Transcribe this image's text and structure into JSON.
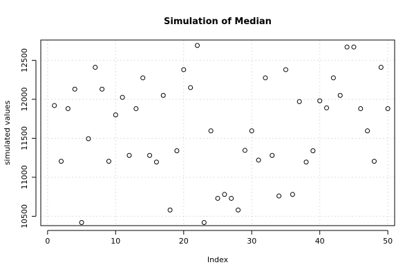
{
  "chart_data": {
    "type": "scatter",
    "title": "Simulation of Median",
    "xlabel": "Index",
    "ylabel": "simulated values",
    "xlim": [
      -1,
      51
    ],
    "ylim": [
      10380,
      12760
    ],
    "x_ticks": [
      0,
      10,
      20,
      30,
      40,
      50
    ],
    "y_ticks": [
      10500,
      11000,
      11500,
      12000,
      12500
    ],
    "grid": true,
    "x": [
      1,
      2,
      3,
      4,
      5,
      6,
      7,
      8,
      9,
      10,
      11,
      12,
      13,
      14,
      15,
      16,
      17,
      18,
      19,
      20,
      21,
      22,
      23,
      24,
      25,
      26,
      27,
      28,
      29,
      30,
      31,
      32,
      33,
      34,
      35,
      36,
      37,
      38,
      39,
      40,
      41,
      42,
      43,
      44,
      45,
      46,
      47,
      48,
      49,
      50
    ],
    "y": [
      11920,
      11205,
      11880,
      12130,
      10420,
      11495,
      12410,
      12130,
      11205,
      11800,
      12025,
      11280,
      11880,
      12275,
      11280,
      11195,
      12050,
      10580,
      11340,
      12380,
      12150,
      12690,
      10420,
      11595,
      10730,
      10780,
      10730,
      10580,
      11345,
      11595,
      11220,
      12275,
      11280,
      10760,
      12380,
      10780,
      11970,
      11195,
      11340,
      11980,
      11890,
      12275,
      12050,
      12670,
      12670,
      11880,
      11595,
      11205,
      12410,
      11880
    ]
  }
}
